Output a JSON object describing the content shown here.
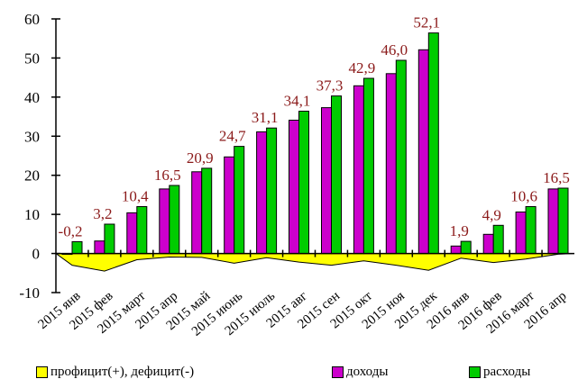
{
  "chart_data": {
    "type": "bar",
    "categories": [
      "2015 янв",
      "2015 фев",
      "2015 март",
      "2015 апр",
      "2015 май",
      "2015 июнь",
      "2015 июль",
      "2015 авг",
      "2015 сен",
      "2015 окт",
      "2015 ноя",
      "2015 дек",
      "2016 янв",
      "2016 фев",
      "2016 март",
      "2016 апр"
    ],
    "series": [
      {
        "name": "профицит(+), дефицит(-)",
        "type": "area",
        "color": "#ffff00",
        "values": [
          -3.0,
          -4.5,
          -1.6,
          -0.9,
          -1.0,
          -2.5,
          -1.1,
          -2.2,
          -3.0,
          -1.9,
          -3.0,
          -4.3,
          -1.2,
          -2.3,
          -1.4,
          -0.2
        ]
      },
      {
        "name": "доходы",
        "type": "bar",
        "color": "#cc00cc",
        "values": [
          -0.2,
          3.2,
          10.4,
          16.5,
          20.9,
          24.7,
          31.1,
          34.1,
          37.3,
          42.9,
          46.0,
          52.1,
          1.9,
          4.9,
          10.6,
          16.5
        ]
      },
      {
        "name": "расходы",
        "type": "bar",
        "color": "#00cc00",
        "values": [
          3.0,
          7.5,
          12.0,
          17.4,
          21.8,
          27.4,
          32.1,
          36.4,
          40.3,
          44.8,
          49.4,
          56.4,
          3.1,
          7.2,
          12.0,
          16.7
        ]
      }
    ],
    "data_labels": [
      "-0,2",
      "3,2",
      "10,4",
      "16,5",
      "20,9",
      "24,7",
      "31,1",
      "34,1",
      "37,3",
      "42,9",
      "46,0",
      "52,1",
      "1,9",
      "4,9",
      "10,6",
      "16,5"
    ],
    "yticks": [
      "-10",
      "0",
      "10",
      "20",
      "30",
      "40",
      "50",
      "60"
    ],
    "ylim": [
      -10,
      60
    ],
    "legend_position": "bottom",
    "colors": {
      "label": "#8b1a1a",
      "axis": "#000000"
    }
  }
}
